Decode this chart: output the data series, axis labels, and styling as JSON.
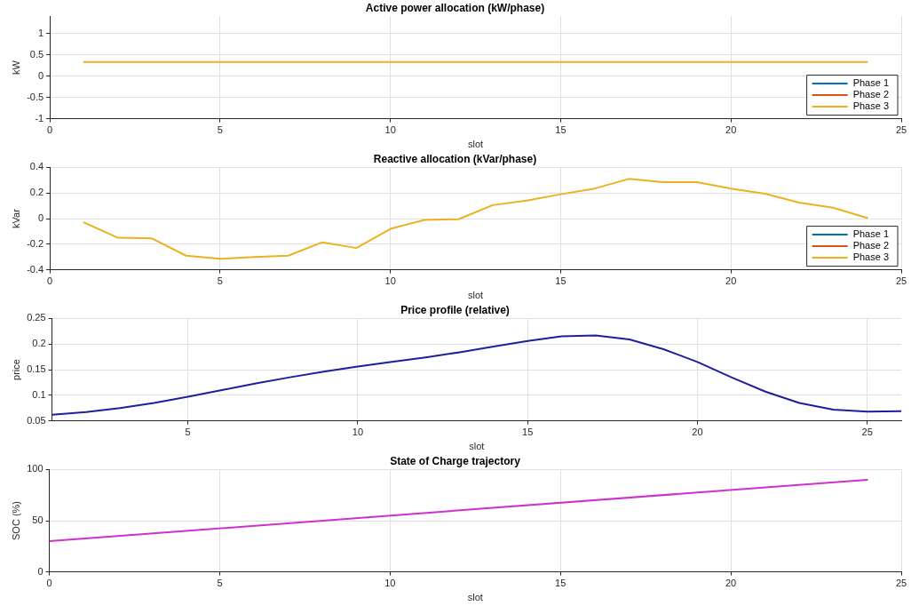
{
  "chart_data": [
    {
      "type": "line",
      "title": "Active power allocation (kW/phase)",
      "xlabel": "slot",
      "ylabel": "kW",
      "x": [
        1,
        2,
        3,
        4,
        5,
        6,
        7,
        8,
        9,
        10,
        11,
        12,
        13,
        14,
        15,
        16,
        17,
        18,
        19,
        20,
        21,
        22,
        23,
        24
      ],
      "series": [
        {
          "name": "Phase 1",
          "color": "#0072bd",
          "values": [
            null,
            null,
            null,
            null,
            null,
            null,
            null,
            null,
            null,
            null,
            null,
            null,
            null,
            null,
            null,
            null,
            null,
            null,
            null,
            null,
            null,
            null,
            null,
            null
          ]
        },
        {
          "name": "Phase 2",
          "color": "#d95319",
          "values": [
            null,
            null,
            null,
            null,
            null,
            null,
            null,
            null,
            null,
            null,
            null,
            null,
            null,
            null,
            null,
            null,
            null,
            null,
            null,
            null,
            null,
            null,
            null,
            null
          ]
        },
        {
          "name": "Phase 3",
          "color": "#edb120",
          "values": [
            0.33,
            0.33,
            0.33,
            0.33,
            0.33,
            0.33,
            0.33,
            0.33,
            0.33,
            0.33,
            0.33,
            0.33,
            0.33,
            0.33,
            0.33,
            0.33,
            0.33,
            0.33,
            0.33,
            0.33,
            0.33,
            0.33,
            0.33,
            0.33
          ]
        }
      ],
      "xlim": [
        0,
        25
      ],
      "xticks": [
        0,
        5,
        10,
        15,
        20,
        25
      ],
      "ylim": [
        -1,
        1.4
      ],
      "yticks": [
        -1,
        -0.5,
        0,
        0.5,
        1
      ],
      "grid": true,
      "legend": "bottom right"
    },
    {
      "type": "line",
      "title": "Reactive allocation (kVar/phase)",
      "xlabel": "slot",
      "ylabel": "kVar",
      "x": [
        1,
        2,
        3,
        4,
        5,
        6,
        7,
        8,
        9,
        10,
        11,
        12,
        13,
        14,
        15,
        16,
        17,
        18,
        19,
        20,
        21,
        22,
        23,
        24
      ],
      "series": [
        {
          "name": "Phase 1",
          "color": "#0072bd",
          "values": [
            null,
            null,
            null,
            null,
            null,
            null,
            null,
            null,
            null,
            null,
            null,
            null,
            null,
            null,
            null,
            null,
            null,
            null,
            null,
            null,
            null,
            null,
            null,
            null
          ]
        },
        {
          "name": "Phase 2",
          "color": "#d95319",
          "values": [
            null,
            null,
            null,
            null,
            null,
            null,
            null,
            null,
            null,
            null,
            null,
            null,
            null,
            null,
            null,
            null,
            null,
            null,
            null,
            null,
            null,
            null,
            null,
            null
          ]
        },
        {
          "name": "Phase 3",
          "color": "#edb120",
          "values": [
            -0.03,
            -0.15,
            -0.155,
            -0.29,
            -0.315,
            -0.3,
            -0.29,
            -0.185,
            -0.23,
            -0.08,
            -0.01,
            -0.005,
            0.105,
            0.14,
            0.19,
            0.235,
            0.31,
            0.285,
            0.285,
            0.235,
            0.195,
            0.125,
            0.085,
            0.005
          ]
        }
      ],
      "xlim": [
        0,
        25
      ],
      "xticks": [
        0,
        5,
        10,
        15,
        20,
        25
      ],
      "ylim": [
        -0.4,
        0.4
      ],
      "yticks": [
        -0.4,
        -0.2,
        0,
        0.2,
        0.4
      ],
      "grid": true,
      "legend": "bottom right"
    },
    {
      "type": "line",
      "title": "Price profile (relative)",
      "xlabel": "slot",
      "ylabel": "price",
      "x": [
        1,
        2,
        3,
        4,
        5,
        6,
        7,
        8,
        9,
        10,
        11,
        12,
        13,
        14,
        15,
        16,
        17,
        18,
        19,
        20,
        21,
        22,
        23,
        24,
        25,
        26
      ],
      "series": [
        {
          "color": "#1f1f9e",
          "values": [
            0.062,
            0.067,
            0.075,
            0.085,
            0.097,
            0.11,
            0.123,
            0.135,
            0.146,
            0.156,
            0.165,
            0.174,
            0.184,
            0.195,
            0.206,
            0.215,
            0.217,
            0.209,
            0.19,
            0.165,
            0.135,
            0.107,
            0.085,
            0.072,
            0.068,
            0.069
          ]
        }
      ],
      "xlim": [
        1,
        26
      ],
      "xticks": [
        5,
        10,
        15,
        20,
        25
      ],
      "ylim": [
        0.05,
        0.25
      ],
      "yticks": [
        0.05,
        0.1,
        0.15,
        0.2,
        0.25
      ],
      "grid": true
    },
    {
      "type": "line",
      "title": "State of Charge trajectory",
      "xlabel": "slot",
      "ylabel": "SOC (%)",
      "x": [
        0,
        24
      ],
      "series": [
        {
          "color": "#cc33cc",
          "values": [
            30,
            90
          ]
        }
      ],
      "xlim": [
        0,
        25
      ],
      "xticks": [
        0,
        5,
        10,
        15,
        20,
        25
      ],
      "ylim": [
        0,
        100
      ],
      "yticks": [
        0,
        50,
        100
      ],
      "grid": true
    }
  ]
}
